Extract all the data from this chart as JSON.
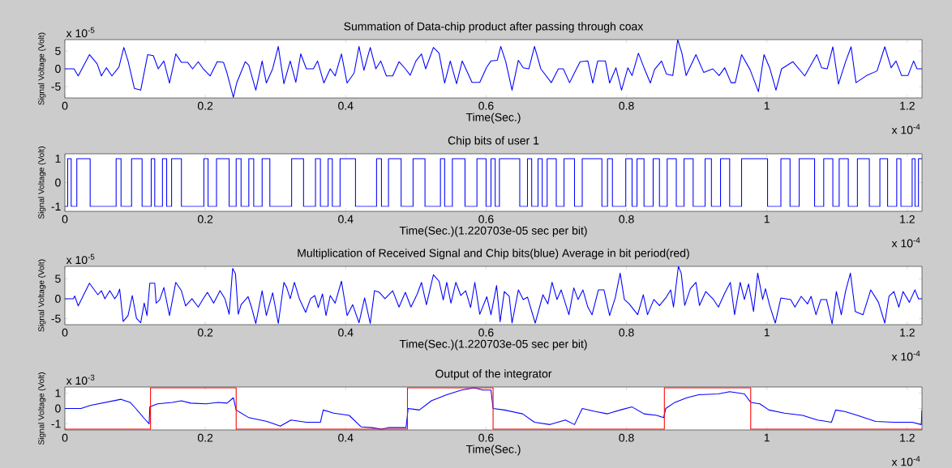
{
  "chart_data": [
    {
      "type": "line",
      "title": "Summation of Data-chip product after passing through coax",
      "xlabel": "Time(Sec.)",
      "ylabel": "Signal Voltage (Volt)",
      "annotations": [
        "x 10$^{-4}$",
        "x 10$^{-5}$"
      ],
      "xlim": [
        0,
        1.221
      ],
      "ylim": [
        -8.2,
        8.2
      ],
      "xticks": [
        0,
        0.2,
        0.4,
        0.6,
        0.8,
        1,
        1.2
      ],
      "yticks": [
        -5,
        0,
        5
      ],
      "series": [
        {
          "color": "#0000ff",
          "x": [
            0,
            0.013,
            0.019,
            0.035,
            0.046,
            0.052,
            0.059,
            0.067,
            0.077,
            0.084,
            0.09,
            0.099,
            0.108,
            0.118,
            0.126,
            0.133,
            0.141,
            0.149,
            0.158,
            0.166,
            0.175,
            0.182,
            0.19,
            0.197,
            0.207,
            0.217,
            0.226,
            0.231,
            0.24,
            0.245,
            0.257,
            0.262,
            0.272,
            0.281,
            0.287,
            0.296,
            0.304,
            0.312,
            0.321,
            0.329,
            0.336,
            0.344,
            0.354,
            0.36,
            0.369,
            0.378,
            0.385,
            0.394,
            0.402,
            0.412,
            0.419,
            0.426,
            0.435,
            0.443,
            0.45,
            0.458,
            0.467,
            0.476,
            0.485,
            0.492,
            0.5,
            0.508,
            0.514,
            0.525,
            0.533,
            0.541,
            0.549,
            0.558,
            0.566,
            0.58,
            0.591,
            0.601,
            0.607,
            0.616,
            0.621,
            0.628,
            0.637,
            0.646,
            0.653,
            0.661,
            0.669,
            0.678,
            0.693,
            0.703,
            0.71,
            0.719,
            0.725,
            0.734,
            0.745,
            0.752,
            0.759,
            0.77,
            0.776,
            0.785,
            0.793,
            0.802,
            0.808,
            0.817,
            0.825,
            0.834,
            0.84,
            0.85,
            0.857,
            0.866,
            0.873,
            0.879,
            0.885,
            0.899,
            0.91,
            0.923,
            0.932,
            0.94,
            0.949,
            0.955,
            0.964,
            0.976,
            0.988,
            0.996,
            1.004,
            1.013,
            1.021,
            1.037,
            1.054,
            1.071,
            1.078,
            1.086,
            1.094,
            1.102,
            1.112,
            1.12,
            1.127,
            1.142,
            1.157,
            1.168,
            1.177,
            1.184,
            1.192,
            1.201,
            1.209,
            1.214,
            1.221
          ],
          "values": [
            0,
            0,
            -2,
            4,
            1.4,
            -2,
            0.3,
            -2,
            0.5,
            6,
            2.2,
            -5.5,
            -6,
            4,
            3.7,
            0,
            2.2,
            -4,
            4.2,
            1.8,
            1.8,
            0,
            2,
            0,
            -2,
            2,
            1.8,
            -1.2,
            -8,
            -3.8,
            2,
            1,
            -6,
            2.2,
            -4,
            0,
            6.3,
            -4.2,
            2.2,
            -3.8,
            4.2,
            0,
            0,
            2.2,
            -4,
            0,
            -2,
            4.2,
            -4,
            -1.2,
            6.3,
            -0.4,
            6,
            0,
            2.2,
            -2,
            -2,
            2,
            0,
            -1.8,
            2.2,
            4.2,
            0,
            6,
            4.4,
            -4,
            2.2,
            -4.2,
            2.2,
            -3.8,
            -3.8,
            0.5,
            2.2,
            2.4,
            6.3,
            2,
            -6,
            2.4,
            0.3,
            0,
            6.3,
            0,
            -3.9,
            0,
            0,
            -3.9,
            -1.5,
            2,
            2.2,
            -4,
            2.2,
            2.2,
            -4,
            0.3,
            -6,
            0.3,
            -1.9,
            4.4,
            0.3,
            -4,
            -0.2,
            2.2,
            -1.5,
            -1.9,
            8.2,
            4.4,
            -1.9,
            4,
            -1,
            0,
            -1.9,
            0.3,
            -3.9,
            -3.9,
            4,
            -0.2,
            -6.4,
            4,
            0.3,
            -6,
            0,
            2,
            -2,
            4,
            0.3,
            0,
            6.2,
            -4.3,
            1.9,
            6.2,
            -3.9,
            -1.9,
            -0.6,
            6.2,
            0.3,
            2.2,
            -1.9,
            -1.9,
            2.2,
            0,
            0
          ]
        }
      ]
    },
    {
      "type": "step",
      "title": "Chip bits of user 1",
      "xlabel": "Time(Sec.)(1.220703e-05 sec per bit)",
      "ylabel": "Signal Voltage (Volt)",
      "annotations": [
        "x 10$^{-4}$"
      ],
      "xlim": [
        0,
        1.221
      ],
      "ylim": [
        -1.2,
        1.2
      ],
      "xticks": [
        0,
        0.2,
        0.4,
        0.6,
        0.8,
        1,
        1.2
      ],
      "yticks": [
        -1,
        0,
        1
      ],
      "series": [
        {
          "color": "#0000ff",
          "x": [
            0,
            0.004,
            0.009,
            0.017,
            0.036,
            0.073,
            0.08,
            0.095,
            0.11,
            0.123,
            0.128,
            0.139,
            0.145,
            0.152,
            0.166,
            0.198,
            0.204,
            0.216,
            0.234,
            0.244,
            0.251,
            0.262,
            0.269,
            0.281,
            0.292,
            0.323,
            0.34,
            0.357,
            0.364,
            0.375,
            0.381,
            0.392,
            0.414,
            0.444,
            0.451,
            0.461,
            0.479,
            0.496,
            0.513,
            0.535,
            0.541,
            0.552,
            0.57,
            0.587,
            0.6,
            0.607,
            0.613,
            0.619,
            0.648,
            0.659,
            0.665,
            0.674,
            0.68,
            0.687,
            0.7,
            0.711,
            0.726,
            0.737,
            0.765,
            0.773,
            0.78,
            0.799,
            0.808,
            0.815,
            0.825,
            0.838,
            0.847,
            0.858,
            0.871,
            0.882,
            0.895,
            0.912,
            0.921,
            0.934,
            0.947,
            0.964,
            1.001,
            1.02,
            1.033,
            1.046,
            1.068,
            1.081,
            1.094,
            1.103,
            1.116,
            1.129,
            1.146,
            1.161,
            1.172,
            1.185,
            1.191,
            1.207,
            1.211,
            1.216,
            1.221
          ],
          "values": [
            -1,
            1,
            -1,
            1,
            -1,
            1,
            -1,
            1,
            -1,
            1,
            -1,
            1,
            -1,
            1,
            -1,
            1,
            -1,
            1,
            -1,
            1,
            -1,
            1,
            -1,
            1,
            -1,
            1,
            -1,
            1,
            -1,
            1,
            -1,
            1,
            -1,
            1,
            -1,
            1,
            -1,
            1,
            -1,
            1,
            -1,
            1,
            -1,
            1,
            -1,
            1,
            -1,
            1,
            -1,
            1,
            -1,
            1,
            -1,
            1,
            -1,
            1,
            -1,
            1,
            -1,
            1,
            -1,
            1,
            -1,
            1,
            -1,
            1,
            -1,
            1,
            -1,
            1,
            -1,
            1,
            -1,
            1,
            -1,
            1,
            -1,
            1,
            -1,
            1,
            -1,
            1,
            -1,
            1,
            -1,
            1,
            -1,
            1,
            -1,
            1,
            -1,
            1,
            -1,
            1,
            1
          ]
        }
      ]
    },
    {
      "type": "line",
      "title": "Multiplication of Received Signal and Chip bits(blue) Average in bit period(red)",
      "xlabel": "Time(Sec.)(1.220703e-05 sec per bit)",
      "ylabel": "Signal Voltage (Volt)",
      "annotations": [
        "x 10$^{-4}$",
        "x 10$^{-5}$"
      ],
      "xlim": [
        0,
        1.221
      ],
      "ylim": [
        -6.5,
        8.1
      ],
      "xticks": [
        0,
        0.2,
        0.4,
        0.6,
        0.8,
        1,
        1.2
      ],
      "yticks": [
        -5,
        0,
        5
      ],
      "series": [
        {
          "color": "#0000ff",
          "x": [
            0,
            0.012,
            0.014,
            0.019,
            0.035,
            0.047,
            0.052,
            0.057,
            0.064,
            0.071,
            0.075,
            0.078,
            0.083,
            0.09,
            0.096,
            0.102,
            0.108,
            0.113,
            0.117,
            0.121,
            0.128,
            0.13,
            0.135,
            0.141,
            0.149,
            0.158,
            0.166,
            0.172,
            0.181,
            0.19,
            0.197,
            0.203,
            0.212,
            0.221,
            0.228,
            0.234,
            0.239,
            0.243,
            0.247,
            0.251,
            0.261,
            0.266,
            0.272,
            0.281,
            0.287,
            0.296,
            0.304,
            0.312,
            0.316,
            0.321,
            0.327,
            0.334,
            0.343,
            0.35,
            0.356,
            0.361,
            0.367,
            0.372,
            0.378,
            0.385,
            0.394,
            0.402,
            0.41,
            0.419,
            0.427,
            0.435,
            0.441,
            0.448,
            0.456,
            0.467,
            0.476,
            0.485,
            0.493,
            0.502,
            0.508,
            0.515,
            0.525,
            0.533,
            0.539,
            0.544,
            0.55,
            0.557,
            0.564,
            0.571,
            0.578,
            0.584,
            0.591,
            0.601,
            0.607,
            0.615,
            0.62,
            0.626,
            0.633,
            0.637,
            0.646,
            0.653,
            0.659,
            0.67,
            0.681,
            0.688,
            0.694,
            0.701,
            0.707,
            0.718,
            0.725,
            0.731,
            0.738,
            0.745,
            0.751,
            0.76,
            0.768,
            0.776,
            0.784,
            0.791,
            0.797,
            0.804,
            0.816,
            0.824,
            0.83,
            0.839,
            0.847,
            0.856,
            0.863,
            0.867,
            0.874,
            0.878,
            0.883,
            0.891,
            0.899,
            0.904,
            0.913,
            0.924,
            0.931,
            0.94,
            0.948,
            0.954,
            0.962,
            0.968,
            0.974,
            0.981,
            0.987,
            0.994,
            0.998,
            1.004,
            1.012,
            1.02,
            1.034,
            1.04,
            1.049,
            1.058,
            1.063,
            1.07,
            1.077,
            1.085,
            1.093,
            1.099,
            1.106,
            1.112,
            1.119,
            1.126,
            1.137,
            1.148,
            1.159,
            1.168,
            1.174,
            1.181,
            1.188,
            1.194,
            1.203,
            1.211,
            1.216,
            1.221
          ],
          "values": [
            0,
            0,
            0.7,
            -1.8,
            3.9,
            1,
            2,
            0,
            2,
            0,
            1,
            2.4,
            -5.7,
            -4.2,
            0.8,
            -4.9,
            -6,
            -1.1,
            -4.2,
            3.9,
            3.9,
            -1.1,
            -0.3,
            2.8,
            -4.2,
            4.1,
            2,
            -1.8,
            0,
            -2.1,
            0,
            1.6,
            -1.1,
            2,
            0,
            -3.9,
            7.6,
            6.2,
            -3.9,
            -1.5,
            0.5,
            -2.2,
            -6.2,
            2,
            -4.2,
            1.5,
            -6.2,
            4.1,
            2.8,
            0,
            4.1,
            0,
            -3.4,
            0,
            0.8,
            -2.2,
            1.2,
            -4.2,
            0.8,
            -1.1,
            4.4,
            -4.2,
            -1.5,
            -6,
            0.2,
            -6.2,
            2,
            1.6,
            0,
            2,
            -2.1,
            1.6,
            -2.1,
            1.2,
            4.1,
            -1.5,
            6,
            4.4,
            -0.3,
            4.1,
            -1.1,
            4.1,
            0.8,
            2,
            -2.2,
            4.1,
            -3.9,
            0.5,
            -4,
            3.3,
            -5.8,
            1.8,
            0.6,
            -6.1,
            2.2,
            -0.2,
            0.4,
            -6.1,
            1,
            -1.3,
            4.1,
            -0.2,
            2.2,
            -4,
            2.7,
            -0.2,
            2.2,
            -2.1,
            -4,
            2.2,
            2.2,
            -4.2,
            0.2,
            6.4,
            -0.2,
            -1.3,
            -4,
            1,
            -4,
            -0.2,
            -1.7,
            0.2,
            2.2,
            -2.1,
            8.1,
            6.4,
            -1.7,
            2.5,
            4.1,
            -1.7,
            1.8,
            -0.2,
            -2.1,
            1.4,
            4.1,
            -4,
            4.1,
            -0.2,
            3.7,
            -3.2,
            6.4,
            -0.2,
            2.5,
            -1.7,
            -6.1,
            0.2,
            -0.2,
            -2.1,
            0.6,
            -1.3,
            0.6,
            -4,
            -0.2,
            -0.2,
            -6.3,
            1.8,
            -4,
            1.8,
            6.4,
            -3.2,
            -4,
            2.2,
            -0.9,
            -6.1,
            0.6,
            1.8,
            -2.1,
            1.8,
            -0.9,
            2.2,
            0,
            0
          ]
        }
      ]
    },
    {
      "type": "line",
      "title": "Output of the integrator",
      "xlabel": "Time(Sec.)",
      "ylabel": "Signal Voltage (Volt)",
      "annotations": [
        "x 10$^{-4}$",
        "x 10$^{-3}$"
      ],
      "xlim": [
        0,
        1.221
      ],
      "ylim": [
        -1.4,
        1.4
      ],
      "xticks": [
        0,
        0.2,
        0.4,
        0.6,
        0.8,
        1,
        1.2
      ],
      "yticks": [
        -1,
        0,
        1
      ],
      "series": [
        {
          "color": "#0000ff",
          "x": [
            0,
            0.023,
            0.036,
            0.058,
            0.08,
            0.093,
            0.101,
            0.114,
            0.12,
            0.121,
            0.132,
            0.153,
            0.166,
            0.179,
            0.201,
            0.218,
            0.231,
            0.24,
            0.244,
            0.262,
            0.288,
            0.307,
            0.322,
            0.344,
            0.364,
            0.368,
            0.383,
            0.405,
            0.422,
            0.437,
            0.451,
            0.461,
            0.486,
            0.489,
            0.505,
            0.522,
            0.544,
            0.565,
            0.583,
            0.596,
            0.607,
            0.61,
            0.626,
            0.652,
            0.669,
            0.691,
            0.713,
            0.726,
            0.737,
            0.756,
            0.773,
            0.791,
            0.808,
            0.825,
            0.843,
            0.853,
            0.856,
            0.869,
            0.886,
            0.903,
            0.931,
            0.947,
            0.968,
            0.977,
            0.99,
            1.003,
            1.025,
            1.051,
            1.072,
            1.092,
            1.098,
            1.111,
            1.129,
            1.155,
            1.181,
            1.207,
            1.22,
            1.221
          ],
          "values": [
            0,
            0,
            0.2,
            0.4,
            0.6,
            0.4,
            0,
            -0.7,
            -1.0,
            0.1,
            0.3,
            0.4,
            0.5,
            0.35,
            0.3,
            0.4,
            0.35,
            0.7,
            -0.1,
            -0.6,
            -0.85,
            -1.15,
            -0.75,
            -0.9,
            -0.9,
            -0.1,
            -0.3,
            -0.45,
            -1.2,
            -1.25,
            -1.35,
            -1.25,
            -1.25,
            0,
            -0.1,
            0.5,
            0.9,
            1.2,
            1.35,
            1.2,
            1.2,
            0,
            -0.1,
            -0.35,
            -0.9,
            -1.05,
            -0.75,
            -1.05,
            0,
            -0.2,
            -0.35,
            -0.1,
            0.1,
            -0.35,
            -0.45,
            -0.6,
            0,
            0.4,
            0.7,
            0.9,
            0.95,
            1.1,
            0.95,
            0.4,
            0.3,
            -0.1,
            -0.3,
            -0.45,
            -0.75,
            -0.9,
            -0.1,
            -0.2,
            -0.45,
            -0.85,
            -0.9,
            -0.9,
            -1.05,
            -0.1
          ]
        },
        {
          "type": "step",
          "color": "#ff0000",
          "x": [
            0,
            0.122,
            0.244,
            0.366,
            0.488,
            0.61,
            0.732,
            0.854,
            0.977,
            1.099,
            1.221
          ],
          "values": [
            -1.35,
            1.35,
            -1.35,
            -1.35,
            1.35,
            -1.35,
            -1.35,
            1.35,
            -1.35,
            -1.35,
            -1.35
          ]
        }
      ]
    }
  ]
}
